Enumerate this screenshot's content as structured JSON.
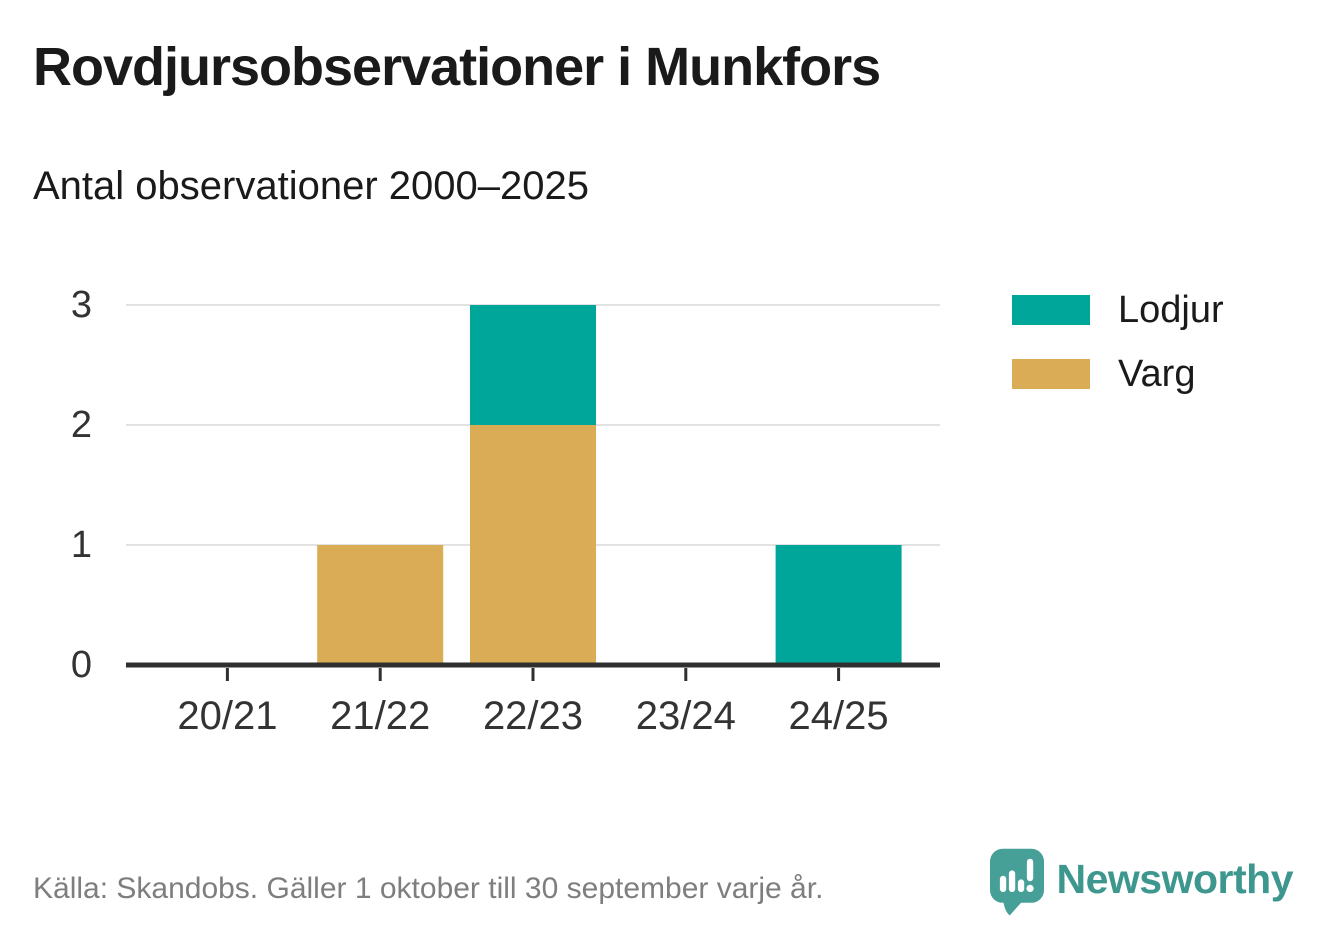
{
  "header": {
    "title": "Rovdjursobservationer i Munkfors",
    "subtitle": "Antal observationer 2000–2025"
  },
  "chart_data": {
    "type": "bar",
    "stacked": true,
    "title": "Rovdjursobservationer i Munkfors",
    "subtitle": "Antal observationer 2000–2025",
    "categories": [
      "20/21",
      "21/22",
      "22/23",
      "23/24",
      "24/25"
    ],
    "series": [
      {
        "name": "Lodjur",
        "color": "#00a699",
        "values": [
          0,
          0,
          1,
          0,
          1
        ]
      },
      {
        "name": "Varg",
        "color": "#d9ac55",
        "values": [
          0,
          1,
          2,
          0,
          0
        ]
      }
    ],
    "stack_order_bottom_to_top": [
      "Varg",
      "Lodjur"
    ],
    "xlabel": "",
    "ylabel": "",
    "ylim": [
      0,
      3
    ],
    "yticks": [
      0,
      1,
      2,
      3
    ],
    "grid": "horizontal-only",
    "legend_position": "right"
  },
  "footer": {
    "source": "Källa: Skandobs. Gäller 1 oktober till 30 september varje år.",
    "brand": "Newsworthy"
  },
  "colors": {
    "axis": "#2f2f2f",
    "grid": "#e2e2e2",
    "tick_text": "#333333",
    "heading_text": "#1a1a1a",
    "muted_text": "#7e7e7e",
    "brand_text": "#3d978e",
    "logo_icon": "#46a098",
    "lodjur": "#00a699",
    "varg": "#d9ac55"
  }
}
